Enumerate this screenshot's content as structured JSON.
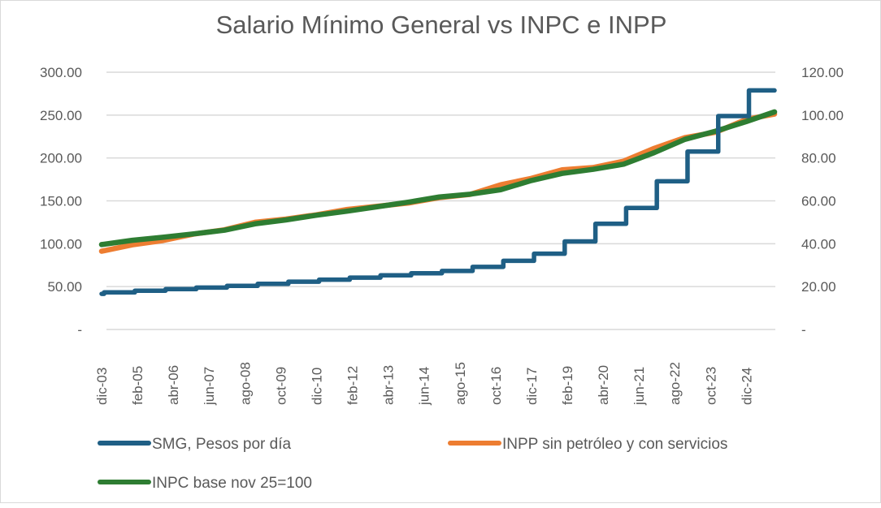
{
  "chart_data": {
    "type": "line",
    "title": "Salario Mínimo General vs INPC e INPP",
    "xlabel": "",
    "ylabel_left": "",
    "ylabel_right": "",
    "x_start": "2003-12",
    "x_end": "2025-11",
    "x_tick_labels": [
      "dic-03",
      "feb-05",
      "abr-06",
      "jun-07",
      "ago-08",
      "oct-09",
      "dic-10",
      "feb-12",
      "abr-13",
      "jun-14",
      "ago-15",
      "oct-16",
      "dic-17",
      "feb-19",
      "abr-20",
      "jun-21",
      "ago-22",
      "oct-23",
      "dic-24"
    ],
    "y_left": {
      "min": 0,
      "max": 300,
      "ticks": [
        "-",
        "50.00",
        "100.00",
        "150.00",
        "200.00",
        "250.00",
        "300.00"
      ]
    },
    "y_right": {
      "min": 0,
      "max": 120,
      "ticks": [
        "-",
        "20.00",
        "40.00",
        "60.00",
        "80.00",
        "100.00",
        "120.00"
      ]
    },
    "grid": true,
    "legend_position": "bottom",
    "series": [
      {
        "name": "SMG, Pesos por día",
        "axis": "left",
        "color": "#1f5f85",
        "style": "step",
        "x": [
          "2003-12",
          "2004-01",
          "2005-01",
          "2006-01",
          "2007-01",
          "2008-01",
          "2009-01",
          "2010-01",
          "2011-01",
          "2012-01",
          "2013-01",
          "2014-01",
          "2015-01",
          "2016-01",
          "2017-01",
          "2018-01",
          "2019-01",
          "2020-01",
          "2021-01",
          "2022-01",
          "2023-01",
          "2024-01",
          "2025-01",
          "2025-11"
        ],
        "values": [
          41.53,
          43.3,
          45.24,
          47.05,
          48.88,
          50.84,
          53.19,
          55.77,
          58.06,
          60.5,
          63.12,
          65.58,
          68.28,
          73.04,
          80.04,
          88.36,
          102.68,
          123.22,
          141.7,
          172.87,
          207.44,
          248.93,
          278.8,
          278.8
        ]
      },
      {
        "name": "INPP sin petróleo y con servicios",
        "axis": "right",
        "color": "#ed7d31",
        "style": "line",
        "x": [
          "2003-12",
          "2004-12",
          "2005-12",
          "2006-12",
          "2007-12",
          "2008-12",
          "2009-12",
          "2010-12",
          "2011-12",
          "2012-12",
          "2013-12",
          "2014-12",
          "2015-12",
          "2016-12",
          "2017-12",
          "2018-12",
          "2019-12",
          "2020-12",
          "2021-12",
          "2022-12",
          "2023-12",
          "2024-12",
          "2025-11"
        ],
        "values": [
          36.5,
          39.5,
          41.5,
          44.5,
          46.5,
          50.0,
          51.5,
          53.5,
          56.0,
          57.5,
          59.0,
          61.5,
          63.0,
          67.5,
          70.5,
          74.5,
          75.5,
          78.5,
          84.5,
          89.5,
          92.0,
          98.0,
          100.5
        ]
      },
      {
        "name": "INPC base nov 25=100",
        "axis": "right",
        "color": "#2e7d32",
        "style": "line",
        "x": [
          "2003-12",
          "2004-12",
          "2005-12",
          "2006-12",
          "2007-12",
          "2008-12",
          "2009-12",
          "2010-12",
          "2011-12",
          "2012-12",
          "2013-12",
          "2014-12",
          "2015-12",
          "2016-12",
          "2017-12",
          "2018-12",
          "2019-12",
          "2020-12",
          "2021-12",
          "2022-12",
          "2023-12",
          "2024-12",
          "2025-11"
        ],
        "values": [
          39.6,
          41.6,
          43.0,
          44.6,
          46.3,
          49.3,
          51.1,
          53.3,
          55.2,
          57.3,
          59.4,
          61.8,
          63.1,
          65.2,
          69.5,
          72.8,
          74.7,
          77.1,
          82.5,
          88.7,
          92.5,
          97.0,
          101.5
        ]
      }
    ]
  }
}
